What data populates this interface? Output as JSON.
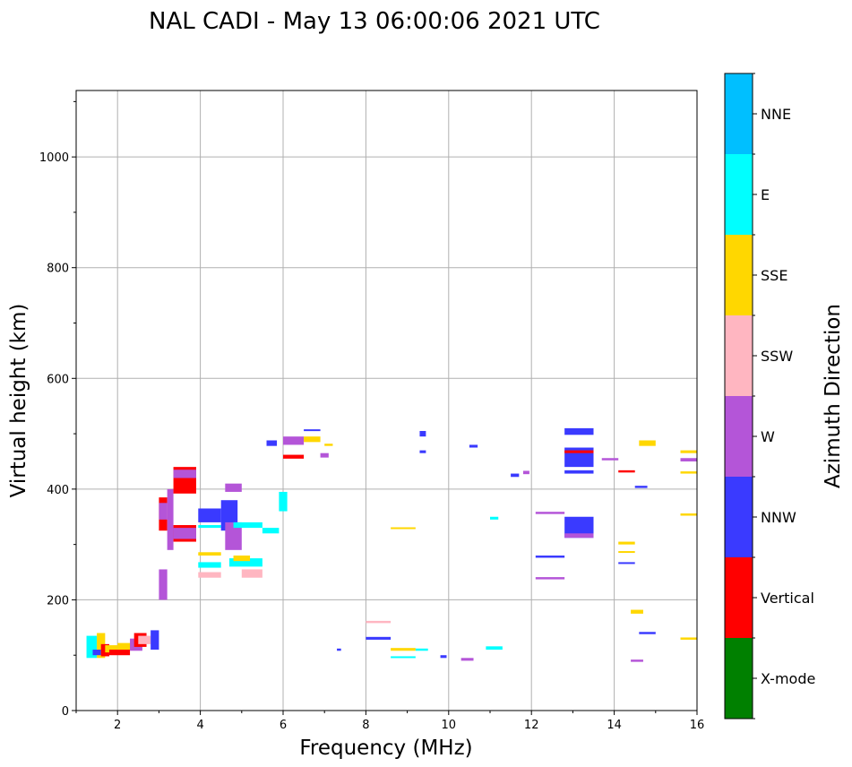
{
  "chart_data": {
    "type": "scatter",
    "subtype": "ionogram",
    "title": "NAL CADI - May 13 06:00:06 2021 UTC",
    "xlabel": "Frequency (MHz)",
    "ylabel": "Virtual height (km)",
    "xlim": [
      1,
      16
    ],
    "ylim": [
      0,
      1120
    ],
    "xticks": [
      2,
      4,
      6,
      8,
      10,
      12,
      14,
      16
    ],
    "yticks": [
      0,
      200,
      400,
      600,
      800,
      1000
    ],
    "grid": true,
    "colorbar": {
      "label": "Azimuth Direction",
      "categories": [
        {
          "name": "X-mode",
          "color": "#008000"
        },
        {
          "name": "Vertical",
          "color": "#ff0000"
        },
        {
          "name": "NNW",
          "color": "#3a3aff"
        },
        {
          "name": "W",
          "color": "#b455d8"
        },
        {
          "name": "SSW",
          "color": "#ffb6c1"
        },
        {
          "name": "SSE",
          "color": "#ffd700"
        },
        {
          "name": "E",
          "color": "#00ffff"
        },
        {
          "name": "NNE",
          "color": "#00bfff"
        }
      ]
    },
    "traces": [
      {
        "x0": 1.25,
        "x1": 1.5,
        "h0": 95,
        "h1": 135,
        "dir": "E"
      },
      {
        "x0": 1.5,
        "x1": 1.7,
        "h0": 95,
        "h1": 140,
        "dir": "SSE"
      },
      {
        "x0": 1.4,
        "x1": 1.6,
        "h0": 100,
        "h1": 110,
        "dir": "NNW"
      },
      {
        "x0": 1.6,
        "x1": 1.8,
        "h0": 98,
        "h1": 120,
        "dir": "Vertical"
      },
      {
        "x0": 1.7,
        "x1": 2.0,
        "h0": 105,
        "h1": 118,
        "dir": "SSE"
      },
      {
        "x0": 1.8,
        "x1": 2.3,
        "h0": 100,
        "h1": 110,
        "dir": "Vertical"
      },
      {
        "x0": 2.0,
        "x1": 2.4,
        "h0": 110,
        "h1": 122,
        "dir": "SSE"
      },
      {
        "x0": 2.3,
        "x1": 2.6,
        "h0": 108,
        "h1": 130,
        "dir": "W"
      },
      {
        "x0": 2.4,
        "x1": 2.7,
        "h0": 115,
        "h1": 140,
        "dir": "Vertical"
      },
      {
        "x0": 2.5,
        "x1": 2.8,
        "h0": 120,
        "h1": 135,
        "dir": "SSW"
      },
      {
        "x0": 2.8,
        "x1": 3.0,
        "h0": 110,
        "h1": 145,
        "dir": "NNW"
      },
      {
        "x0": 3.0,
        "x1": 3.2,
        "h0": 200,
        "h1": 255,
        "dir": "W"
      },
      {
        "x0": 3.0,
        "x1": 3.2,
        "h0": 325,
        "h1": 385,
        "dir": "Vertical"
      },
      {
        "x0": 3.0,
        "x1": 3.2,
        "h0": 345,
        "h1": 375,
        "dir": "W"
      },
      {
        "x0": 3.2,
        "x1": 3.35,
        "h0": 290,
        "h1": 400,
        "dir": "W"
      },
      {
        "x0": 3.35,
        "x1": 3.9,
        "h0": 392,
        "h1": 440,
        "dir": "Vertical"
      },
      {
        "x0": 3.35,
        "x1": 3.9,
        "h0": 305,
        "h1": 335,
        "dir": "Vertical"
      },
      {
        "x0": 3.35,
        "x1": 3.9,
        "h0": 310,
        "h1": 330,
        "dir": "W"
      },
      {
        "x0": 3.35,
        "x1": 3.9,
        "h0": 420,
        "h1": 435,
        "dir": "W"
      },
      {
        "x0": 3.95,
        "x1": 4.5,
        "h0": 340,
        "h1": 365,
        "dir": "NNW"
      },
      {
        "x0": 3.95,
        "x1": 4.5,
        "h0": 258,
        "h1": 268,
        "dir": "E"
      },
      {
        "x0": 3.95,
        "x1": 4.5,
        "h0": 240,
        "h1": 250,
        "dir": "SSW"
      },
      {
        "x0": 3.95,
        "x1": 4.5,
        "h0": 280,
        "h1": 286,
        "dir": "SSE"
      },
      {
        "x0": 3.95,
        "x1": 4.5,
        "h0": 330,
        "h1": 335,
        "dir": "E"
      },
      {
        "x0": 4.5,
        "x1": 4.9,
        "h0": 325,
        "h1": 380,
        "dir": "NNW"
      },
      {
        "x0": 4.6,
        "x1": 5.0,
        "h0": 290,
        "h1": 340,
        "dir": "W"
      },
      {
        "x0": 4.6,
        "x1": 5.0,
        "h0": 395,
        "h1": 410,
        "dir": "W"
      },
      {
        "x0": 4.7,
        "x1": 5.5,
        "h0": 260,
        "h1": 275,
        "dir": "E"
      },
      {
        "x0": 4.8,
        "x1": 5.5,
        "h0": 330,
        "h1": 340,
        "dir": "E"
      },
      {
        "x0": 5.0,
        "x1": 5.5,
        "h0": 240,
        "h1": 255,
        "dir": "SSW"
      },
      {
        "x0": 4.8,
        "x1": 5.2,
        "h0": 270,
        "h1": 280,
        "dir": "SSE"
      },
      {
        "x0": 5.5,
        "x1": 5.9,
        "h0": 320,
        "h1": 330,
        "dir": "E"
      },
      {
        "x0": 5.9,
        "x1": 6.1,
        "h0": 360,
        "h1": 395,
        "dir": "E"
      },
      {
        "x0": 5.6,
        "x1": 5.85,
        "h0": 478,
        "h1": 488,
        "dir": "NNW"
      },
      {
        "x0": 6.0,
        "x1": 6.5,
        "h0": 455,
        "h1": 462,
        "dir": "Vertical"
      },
      {
        "x0": 6.0,
        "x1": 6.5,
        "h0": 480,
        "h1": 495,
        "dir": "W"
      },
      {
        "x0": 6.5,
        "x1": 6.9,
        "h0": 485,
        "h1": 495,
        "dir": "SSE"
      },
      {
        "x0": 6.5,
        "x1": 6.9,
        "h0": 505,
        "h1": 508,
        "dir": "NNW"
      },
      {
        "x0": 6.9,
        "x1": 7.1,
        "h0": 457,
        "h1": 465,
        "dir": "W"
      },
      {
        "x0": 7.0,
        "x1": 7.2,
        "h0": 478,
        "h1": 482,
        "dir": "SSE"
      },
      {
        "x0": 7.3,
        "x1": 7.4,
        "h0": 108,
        "h1": 112,
        "dir": "NNW"
      },
      {
        "x0": 8.0,
        "x1": 8.6,
        "h0": 128,
        "h1": 133,
        "dir": "NNW"
      },
      {
        "x0": 8.0,
        "x1": 8.6,
        "h0": 158,
        "h1": 162,
        "dir": "SSW"
      },
      {
        "x0": 8.6,
        "x1": 9.2,
        "h0": 108,
        "h1": 113,
        "dir": "SSE"
      },
      {
        "x0": 8.6,
        "x1": 9.2,
        "h0": 95,
        "h1": 98,
        "dir": "E"
      },
      {
        "x0": 8.6,
        "x1": 9.2,
        "h0": 328,
        "h1": 331,
        "dir": "SSE"
      },
      {
        "x0": 9.2,
        "x1": 9.5,
        "h0": 108,
        "h1": 112,
        "dir": "E"
      },
      {
        "x0": 9.3,
        "x1": 9.45,
        "h0": 465,
        "h1": 470,
        "dir": "NNW"
      },
      {
        "x0": 9.3,
        "x1": 9.45,
        "h0": 495,
        "h1": 505,
        "dir": "NNW"
      },
      {
        "x0": 9.8,
        "x1": 9.95,
        "h0": 95,
        "h1": 100,
        "dir": "NNW"
      },
      {
        "x0": 10.3,
        "x1": 10.6,
        "h0": 90,
        "h1": 95,
        "dir": "W"
      },
      {
        "x0": 10.5,
        "x1": 10.7,
        "h0": 475,
        "h1": 480,
        "dir": "NNW"
      },
      {
        "x0": 10.9,
        "x1": 11.3,
        "h0": 110,
        "h1": 116,
        "dir": "E"
      },
      {
        "x0": 11.0,
        "x1": 11.2,
        "h0": 345,
        "h1": 350,
        "dir": "E"
      },
      {
        "x0": 11.5,
        "x1": 11.7,
        "h0": 422,
        "h1": 428,
        "dir": "NNW"
      },
      {
        "x0": 11.8,
        "x1": 11.95,
        "h0": 427,
        "h1": 433,
        "dir": "W"
      },
      {
        "x0": 12.1,
        "x1": 12.8,
        "h0": 355,
        "h1": 359,
        "dir": "W"
      },
      {
        "x0": 12.1,
        "x1": 12.8,
        "h0": 276,
        "h1": 280,
        "dir": "NNW"
      },
      {
        "x0": 12.1,
        "x1": 12.8,
        "h0": 237,
        "h1": 241,
        "dir": "W"
      },
      {
        "x0": 12.8,
        "x1": 13.5,
        "h0": 498,
        "h1": 510,
        "dir": "NNW"
      },
      {
        "x0": 12.8,
        "x1": 13.5,
        "h0": 440,
        "h1": 475,
        "dir": "NNW"
      },
      {
        "x0": 12.8,
        "x1": 13.5,
        "h0": 465,
        "h1": 470,
        "dir": "Vertical"
      },
      {
        "x0": 12.8,
        "x1": 13.5,
        "h0": 428,
        "h1": 434,
        "dir": "NNW"
      },
      {
        "x0": 12.8,
        "x1": 13.5,
        "h0": 312,
        "h1": 350,
        "dir": "NNW"
      },
      {
        "x0": 12.8,
        "x1": 13.5,
        "h0": 312,
        "h1": 320,
        "dir": "W"
      },
      {
        "x0": 13.7,
        "x1": 14.1,
        "h0": 452,
        "h1": 456,
        "dir": "W"
      },
      {
        "x0": 14.1,
        "x1": 14.5,
        "h0": 430,
        "h1": 434,
        "dir": "Vertical"
      },
      {
        "x0": 14.5,
        "x1": 14.8,
        "h0": 402,
        "h1": 406,
        "dir": "NNW"
      },
      {
        "x0": 14.1,
        "x1": 14.5,
        "h0": 300,
        "h1": 305,
        "dir": "SSE"
      },
      {
        "x0": 14.1,
        "x1": 14.5,
        "h0": 285,
        "h1": 288,
        "dir": "SSE"
      },
      {
        "x0": 14.1,
        "x1": 14.5,
        "h0": 265,
        "h1": 268,
        "dir": "NNW"
      },
      {
        "x0": 14.4,
        "x1": 14.7,
        "h0": 175,
        "h1": 182,
        "dir": "SSE"
      },
      {
        "x0": 14.4,
        "x1": 14.7,
        "h0": 88,
        "h1": 92,
        "dir": "W"
      },
      {
        "x0": 14.6,
        "x1": 15.0,
        "h0": 478,
        "h1": 488,
        "dir": "SSE"
      },
      {
        "x0": 14.6,
        "x1": 15.0,
        "h0": 138,
        "h1": 142,
        "dir": "NNW"
      },
      {
        "x0": 15.6,
        "x1": 16.0,
        "h0": 465,
        "h1": 470,
        "dir": "SSE"
      },
      {
        "x0": 15.6,
        "x1": 16.0,
        "h0": 450,
        "h1": 456,
        "dir": "W"
      },
      {
        "x0": 15.6,
        "x1": 16.0,
        "h0": 428,
        "h1": 432,
        "dir": "SSE"
      },
      {
        "x0": 15.6,
        "x1": 16.0,
        "h0": 352,
        "h1": 356,
        "dir": "SSE"
      },
      {
        "x0": 15.6,
        "x1": 16.0,
        "h0": 128,
        "h1": 132,
        "dir": "SSE"
      }
    ]
  }
}
